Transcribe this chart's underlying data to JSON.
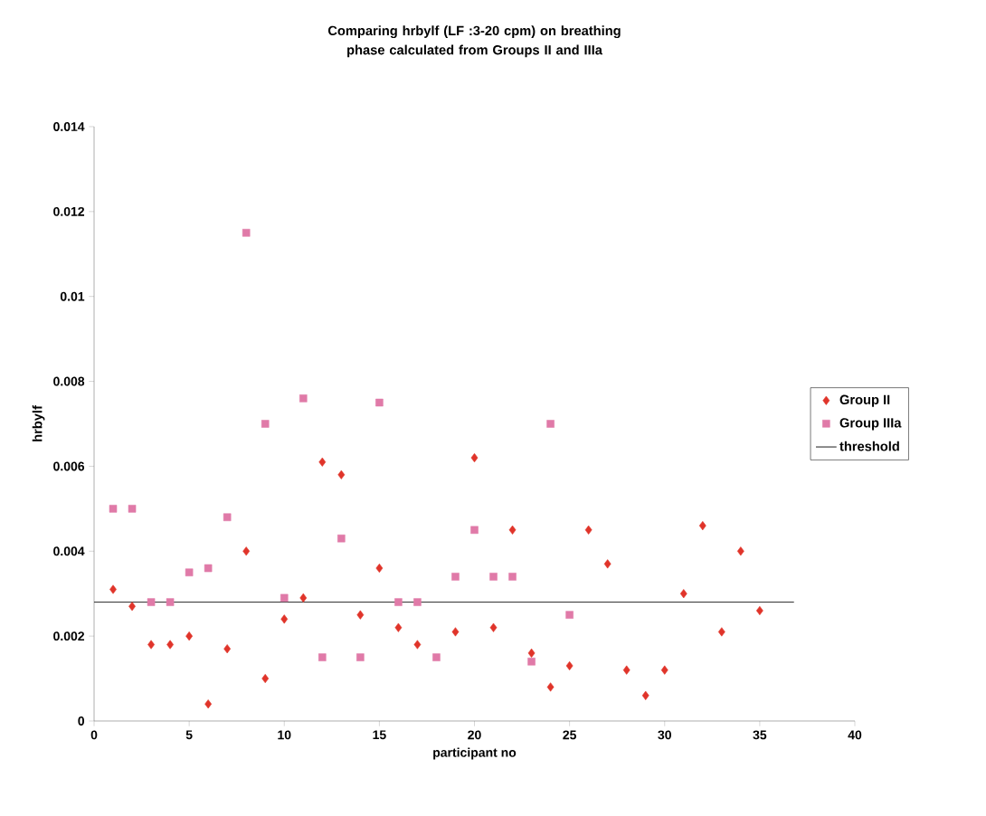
{
  "chart_data": {
    "type": "scatter",
    "title": "Comparing hrbylf (LF :3-20 cpm) on breathing phase calculated from Groups II and IIIa",
    "xlabel": "participant no",
    "ylabel": "hrbylf",
    "xlim": [
      0,
      40
    ],
    "xticks": [
      0,
      5,
      10,
      15,
      20,
      25,
      30,
      35,
      40
    ],
    "ylim": [
      0,
      0.014
    ],
    "yticks": [
      0,
      0.002,
      0.004,
      0.006,
      0.008,
      0.01,
      0.012,
      0.014
    ],
    "grid": false,
    "legend": "right",
    "series": [
      {
        "name": "Group II",
        "marker": "diamond",
        "color": "#e0342a",
        "x": [
          1,
          2,
          3,
          4,
          5,
          6,
          7,
          8,
          9,
          10,
          11,
          12,
          13,
          14,
          15,
          16,
          17,
          19,
          20,
          21,
          22,
          23,
          24,
          25,
          26,
          27,
          28,
          29,
          30,
          31,
          32,
          33,
          34,
          35
        ],
        "values": [
          0.0031,
          0.0027,
          0.0018,
          0.0018,
          0.002,
          0.0004,
          0.0017,
          0.004,
          0.001,
          0.0024,
          0.0029,
          0.0061,
          0.0058,
          0.0025,
          0.0036,
          0.0022,
          0.0018,
          0.0021,
          0.0062,
          0.0022,
          0.0045,
          0.0016,
          0.0008,
          0.0013,
          0.0045,
          0.0037,
          0.0012,
          0.0006,
          0.0012,
          0.003,
          0.0046,
          0.0021,
          0.004,
          0.0026
        ]
      },
      {
        "name": "Group IIIa",
        "marker": "square",
        "color": "#e07aa8",
        "x": [
          1,
          2,
          3,
          4,
          5,
          6,
          7,
          8,
          9,
          10,
          11,
          12,
          13,
          14,
          15,
          16,
          17,
          18,
          19,
          20,
          21,
          22,
          23,
          24,
          25
        ],
        "values": [
          0.005,
          0.005,
          0.0028,
          0.0028,
          0.0035,
          0.0036,
          0.0048,
          0.0115,
          0.007,
          0.0029,
          0.0076,
          0.0015,
          0.0043,
          0.0015,
          0.0075,
          0.0028,
          0.0028,
          0.0015,
          0.0034,
          0.0045,
          0.0034,
          0.0034,
          0.0014,
          0.007,
          0.0025
        ]
      },
      {
        "name": "threshold",
        "type": "line",
        "marker": "none",
        "line_style": "solid",
        "color": "#404040",
        "x": [
          0,
          36.8
        ],
        "values": [
          0.0028,
          0.0028
        ]
      }
    ]
  }
}
